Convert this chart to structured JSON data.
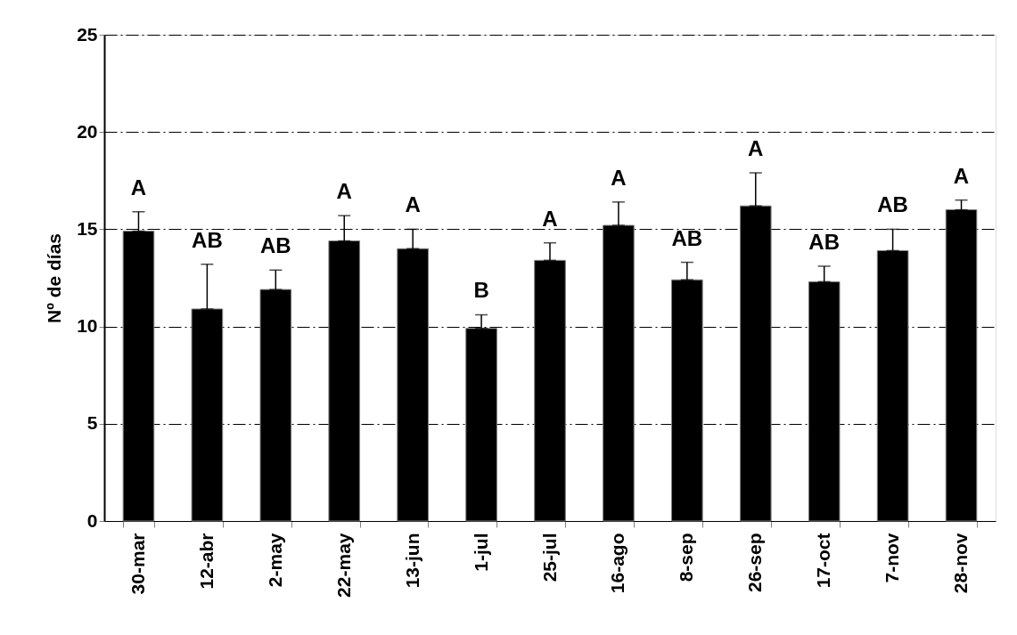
{
  "chart_data": {
    "type": "bar",
    "ylabel": "Nº de días",
    "categories": [
      "30-mar",
      "12-abr",
      "2-may",
      "22-may",
      "13-jun",
      "1-jul",
      "25-jul",
      "16-ago",
      "8-sep",
      "26-sep",
      "17-oct",
      "7-nov",
      "28-nov"
    ],
    "values": [
      14.9,
      10.9,
      11.9,
      14.4,
      14.0,
      9.9,
      13.4,
      15.2,
      12.4,
      16.2,
      12.3,
      13.9,
      16.0
    ],
    "errors": [
      [
        14.9,
        15.9
      ],
      [
        10.9,
        13.2
      ],
      [
        11.9,
        12.9
      ],
      [
        14.4,
        15.7
      ],
      [
        14.0,
        15.0
      ],
      [
        9.9,
        10.6
      ],
      [
        13.4,
        14.3
      ],
      [
        15.2,
        16.4
      ],
      [
        12.4,
        13.3
      ],
      [
        16.2,
        17.9
      ],
      [
        12.3,
        13.1
      ],
      [
        13.9,
        15.0
      ],
      [
        16.0,
        16.5
      ]
    ],
    "color": "#000000",
    "ylim": [
      0,
      25
    ],
    "yticks": [
      0,
      5,
      10,
      15,
      20,
      25
    ],
    "grid": "y",
    "annotations": [
      "A",
      "AB",
      "AB",
      "A",
      "A",
      "B",
      "A",
      "A",
      "AB",
      "A",
      "AB",
      "AB",
      "A"
    ]
  }
}
